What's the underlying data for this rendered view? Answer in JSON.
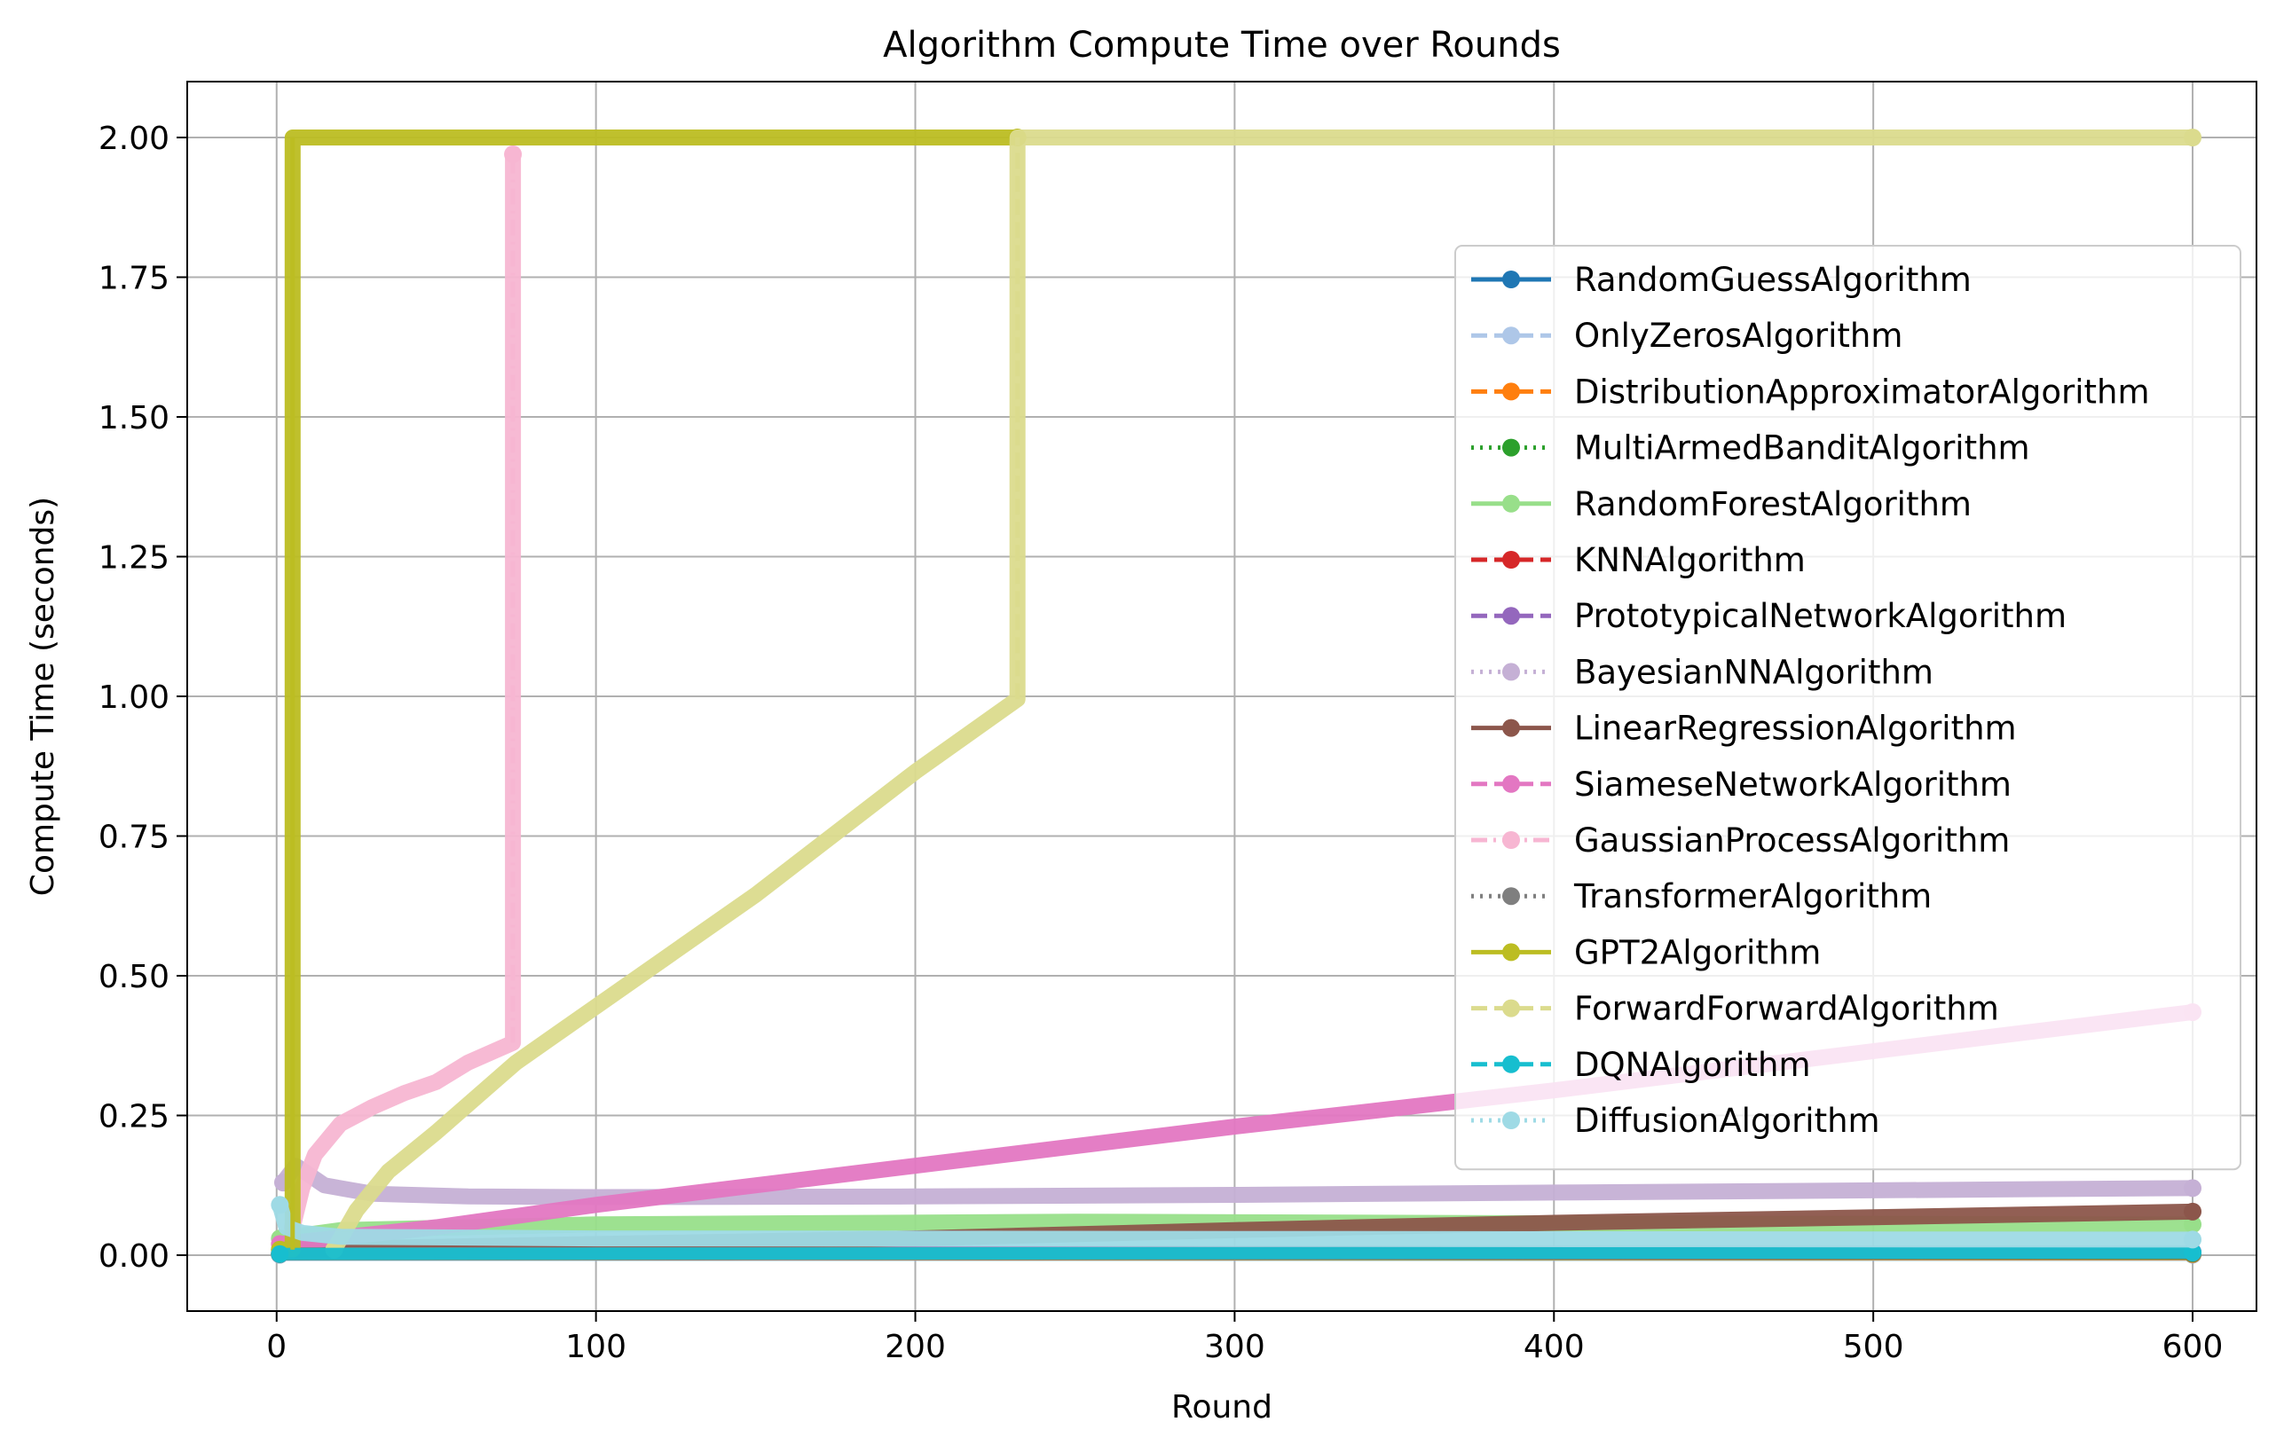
{
  "chart_data": {
    "type": "line",
    "title": "Algorithm Compute Time over Rounds",
    "xlabel": "Round",
    "ylabel": "Compute Time (seconds)",
    "xlim": [
      -28,
      620
    ],
    "ylim": [
      -0.1,
      2.1
    ],
    "xticks": [
      0,
      100,
      200,
      300,
      400,
      500,
      600
    ],
    "yticks": [
      0.0,
      0.25,
      0.5,
      0.75,
      1.0,
      1.25,
      1.5,
      1.75,
      2.0
    ],
    "xtick_labels": [
      "0",
      "100",
      "200",
      "300",
      "400",
      "500",
      "600"
    ],
    "ytick_labels": [
      "0.00",
      "0.25",
      "0.50",
      "0.75",
      "1.00",
      "1.25",
      "1.50",
      "1.75",
      "2.00"
    ],
    "grid": true,
    "legend_position": "right",
    "series": [
      {
        "name": "RandomGuessAlgorithm",
        "color": "#1f77b4",
        "dash": "solid",
        "points": [
          [
            1,
            0.001
          ],
          [
            600,
            0.001
          ]
        ]
      },
      {
        "name": "OnlyZerosAlgorithm",
        "color": "#aec7e8",
        "dash": "dashed",
        "points": [
          [
            1,
            0.001
          ],
          [
            600,
            0.001
          ]
        ]
      },
      {
        "name": "DistributionApproximatorAlgorithm",
        "color": "#ff7f0e",
        "dash": "dashed",
        "points": [
          [
            1,
            0.002
          ],
          [
            600,
            0.002
          ]
        ]
      },
      {
        "name": "MultiArmedBanditAlgorithm",
        "color": "#2ca02c",
        "dash": "dotted",
        "points": [
          [
            1,
            0.002
          ],
          [
            600,
            0.003
          ]
        ]
      },
      {
        "name": "RandomForestAlgorithm",
        "color": "#98df8a",
        "dash": "solid",
        "points": [
          [
            1,
            0.03
          ],
          [
            20,
            0.045
          ],
          [
            100,
            0.055
          ],
          [
            250,
            0.06
          ],
          [
            400,
            0.057
          ],
          [
            600,
            0.055
          ]
        ]
      },
      {
        "name": "KNNAlgorithm",
        "color": "#d62728",
        "dash": "dashed",
        "points": [
          [
            1,
            0.002
          ],
          [
            600,
            0.004
          ]
        ]
      },
      {
        "name": "PrototypicalNetworkAlgorithm",
        "color": "#9467bd",
        "dash": "dashed",
        "points": [
          [
            1,
            0.005
          ],
          [
            600,
            0.006
          ]
        ]
      },
      {
        "name": "BayesianNNAlgorithm",
        "color": "#c5b0d5",
        "dash": "dotted",
        "points": [
          [
            2,
            0.13
          ],
          [
            6,
            0.16
          ],
          [
            15,
            0.125
          ],
          [
            30,
            0.11
          ],
          [
            60,
            0.105
          ],
          [
            100,
            0.104
          ],
          [
            200,
            0.105
          ],
          [
            300,
            0.108
          ],
          [
            400,
            0.112
          ],
          [
            500,
            0.116
          ],
          [
            600,
            0.12
          ]
        ]
      },
      {
        "name": "LinearRegressionAlgorithm",
        "color": "#8c564b",
        "dash": "solid",
        "points": [
          [
            1,
            0.01
          ],
          [
            100,
            0.02
          ],
          [
            200,
            0.03
          ],
          [
            300,
            0.045
          ],
          [
            400,
            0.058
          ],
          [
            500,
            0.068
          ],
          [
            600,
            0.078
          ]
        ]
      },
      {
        "name": "SiameseNetworkAlgorithm",
        "color": "#e377c2",
        "dash": "dashed",
        "points": [
          [
            1,
            0.02
          ],
          [
            50,
            0.05
          ],
          [
            100,
            0.09
          ],
          [
            200,
            0.16
          ],
          [
            300,
            0.23
          ],
          [
            400,
            0.295
          ],
          [
            500,
            0.365
          ],
          [
            600,
            0.435
          ]
        ]
      },
      {
        "name": "GaussianProcessAlgorithm",
        "color": "#f7b6d2",
        "dash": "dashdot",
        "points": [
          [
            5,
            0.05
          ],
          [
            8,
            0.12
          ],
          [
            12,
            0.18
          ],
          [
            20,
            0.235
          ],
          [
            30,
            0.265
          ],
          [
            40,
            0.29
          ],
          [
            50,
            0.31
          ],
          [
            60,
            0.345
          ],
          [
            70,
            0.37
          ],
          [
            74,
            0.38
          ],
          [
            74,
            1.97
          ]
        ]
      },
      {
        "name": "TransformerAlgorithm",
        "color": "#7f7f7f",
        "dash": "dotted",
        "points": [
          [
            1,
            0.003
          ],
          [
            600,
            0.004
          ]
        ]
      },
      {
        "name": "GPT2Algorithm",
        "color": "#bcbd22",
        "dash": "solid",
        "points": [
          [
            1,
            0.01
          ],
          [
            5,
            0.01
          ],
          [
            5,
            2.0
          ],
          [
            232,
            2.0
          ]
        ]
      },
      {
        "name": "ForwardForwardAlgorithm",
        "color": "#dbdb8d",
        "dash": "dashed",
        "points": [
          [
            18,
            0.01
          ],
          [
            25,
            0.08
          ],
          [
            35,
            0.15
          ],
          [
            50,
            0.22
          ],
          [
            60,
            0.27
          ],
          [
            70,
            0.32
          ],
          [
            75,
            0.345
          ],
          [
            100,
            0.445
          ],
          [
            150,
            0.645
          ],
          [
            200,
            0.865
          ],
          [
            232,
            0.995
          ],
          [
            232,
            2.0
          ],
          [
            600,
            2.0
          ]
        ]
      },
      {
        "name": "DQNAlgorithm",
        "color": "#17becf",
        "dash": "dashed",
        "points": [
          [
            1,
            0.002
          ],
          [
            600,
            0.005
          ]
        ]
      },
      {
        "name": "DiffusionAlgorithm",
        "color": "#9edae5",
        "dash": "dotted",
        "points": [
          [
            1,
            0.09
          ],
          [
            3,
            0.05
          ],
          [
            8,
            0.04
          ],
          [
            20,
            0.033
          ],
          [
            100,
            0.03
          ],
          [
            300,
            0.029
          ],
          [
            600,
            0.028
          ]
        ]
      }
    ]
  }
}
